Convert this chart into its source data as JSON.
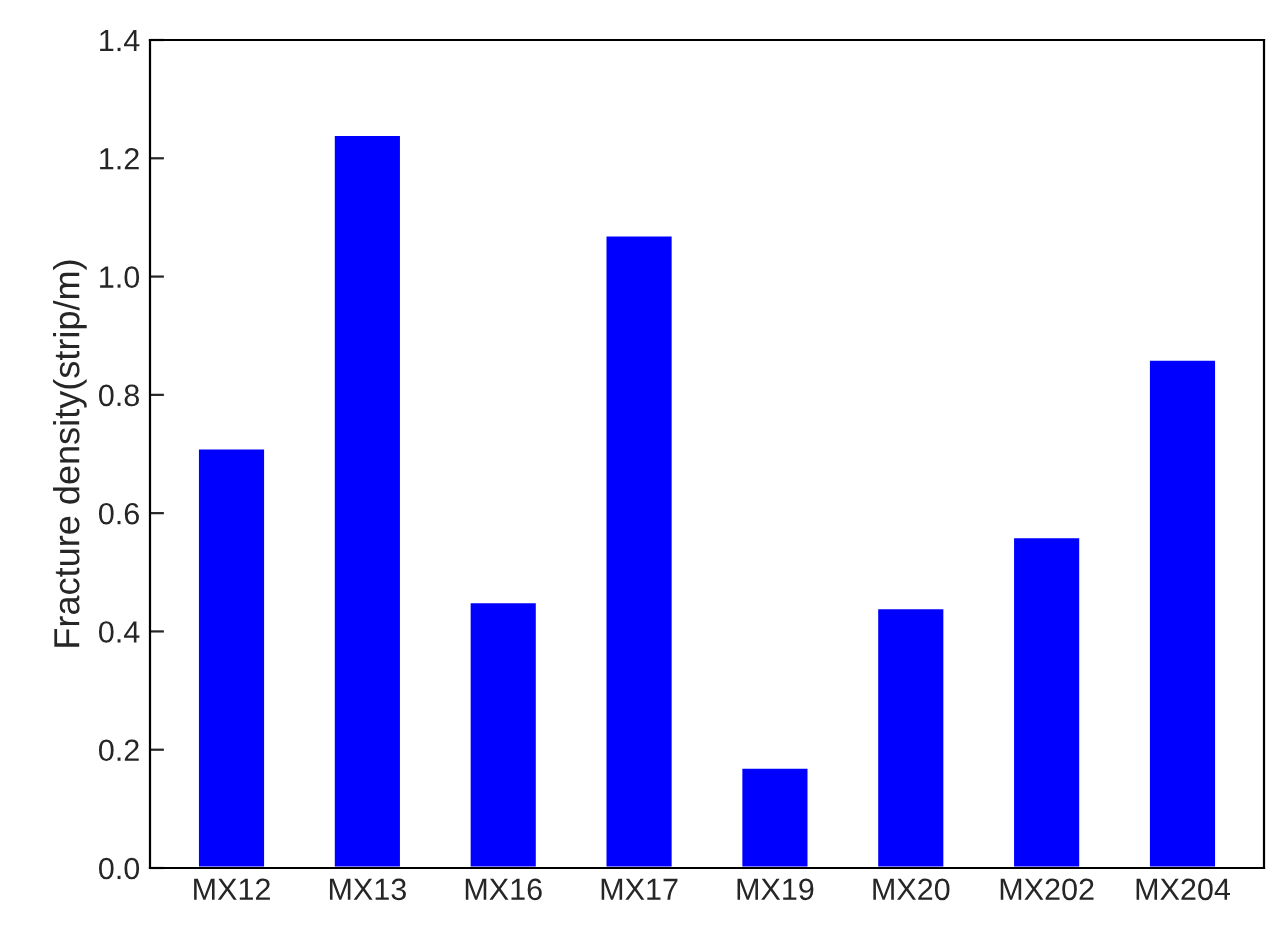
{
  "chart_data": {
    "type": "bar",
    "ylabel": "Fracture density(strip/m)",
    "categories": [
      "MX12",
      "MX13",
      "MX16",
      "MX17",
      "MX19",
      "MX20",
      "MX202",
      "MX204"
    ],
    "values": [
      0.71,
      1.24,
      0.45,
      1.07,
      0.17,
      0.44,
      0.56,
      0.86
    ],
    "color": "#0000ff",
    "ylim": [
      0,
      1.4
    ],
    "yticks": [
      {
        "value": 0,
        "label": "0.0"
      },
      {
        "value": 0.2,
        "label": "0.2"
      },
      {
        "value": 0.4,
        "label": "0.4"
      },
      {
        "value": 0.6,
        "label": "0.6"
      },
      {
        "value": 0.8,
        "label": "0.8"
      },
      {
        "value": 1,
        "label": "1.0"
      },
      {
        "value": 1.2,
        "label": "1.2"
      },
      {
        "value": 1.4,
        "label": "1.4"
      }
    ],
    "grid": false,
    "legend": false
  }
}
